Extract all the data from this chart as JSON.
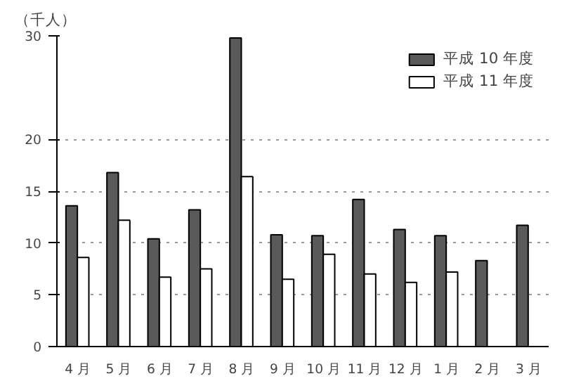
{
  "chart_data": {
    "type": "bar",
    "ylabel": "（千人）",
    "categories": [
      "4 月",
      "5 月",
      "6 月",
      "7 月",
      "8 月",
      "9 月",
      "10 月",
      "11 月",
      "12 月",
      "1 月",
      "2 月",
      "3 月"
    ],
    "series": [
      {
        "name": "平成 10 年度",
        "color": "#5a5a5a",
        "values": [
          13.6,
          16.8,
          10.4,
          13.2,
          29.8,
          10.8,
          10.7,
          14.2,
          11.3,
          10.7,
          8.3,
          11.7
        ]
      },
      {
        "name": "平成 11 年度",
        "color": "#ffffff",
        "values": [
          8.6,
          12.2,
          6.7,
          7.5,
          16.4,
          6.5,
          8.9,
          7.0,
          6.2,
          7.2,
          null,
          null
        ]
      }
    ],
    "ylim": [
      0,
      30
    ],
    "yticks": [
      0,
      5,
      10,
      15,
      20,
      30
    ],
    "grid": "y",
    "legend": "top right"
  }
}
